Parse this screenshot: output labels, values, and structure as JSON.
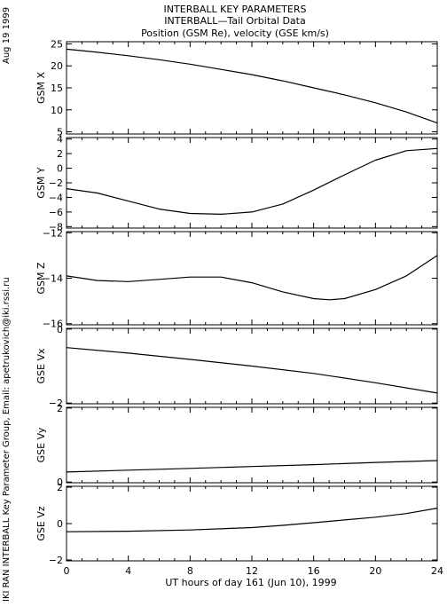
{
  "side_labels": {
    "date": "Aug 19 1999",
    "credit": "IKI RAN INTERBALL Key Parameter Group, Email: apetrukovich@iki.rssi.ru"
  },
  "header": {
    "line1": "INTERBALL KEY PARAMETERS",
    "line2": "INTERBALL—Tail Orbital Data",
    "line3": "Position (GSM Re), velocity (GSE km/s)"
  },
  "colors": {
    "line": "#000000",
    "background": "#ffffff"
  },
  "chart_data": [
    {
      "type": "line",
      "ylabel": "GSM X",
      "xlim": [
        0,
        24
      ],
      "ylim": [
        4.5,
        25.5
      ],
      "yticks": [
        5,
        10,
        15,
        20,
        25
      ],
      "x": [
        0,
        2,
        4,
        6,
        8,
        10,
        12,
        14,
        16,
        18,
        20,
        22,
        24
      ],
      "values": [
        23.8,
        23.1,
        22.3,
        21.4,
        20.4,
        19.2,
        18.0,
        16.6,
        15.0,
        13.4,
        11.6,
        9.5,
        7.0
      ]
    },
    {
      "type": "line",
      "ylabel": "GSM Y",
      "xlim": [
        0,
        24
      ],
      "ylim": [
        -8.2,
        4.2
      ],
      "yticks": [
        -8,
        -6,
        -4,
        -2,
        0,
        2,
        4
      ],
      "x": [
        0,
        2,
        4,
        6,
        8,
        10,
        12,
        14,
        16,
        18,
        20,
        22,
        24
      ],
      "values": [
        -2.8,
        -3.4,
        -4.5,
        -5.6,
        -6.2,
        -6.3,
        -6.0,
        -4.9,
        -3.0,
        -0.9,
        1.1,
        2.4,
        2.7
      ]
    },
    {
      "type": "line",
      "ylabel": "GSM Z",
      "xlim": [
        0,
        24
      ],
      "ylim": [
        -16.05,
        -11.95
      ],
      "yticks": [
        -16,
        -14,
        -12
      ],
      "x": [
        0,
        2,
        4,
        6,
        8,
        10,
        12,
        14,
        16,
        17,
        18,
        20,
        22,
        24
      ],
      "values": [
        -13.9,
        -14.1,
        -14.15,
        -14.05,
        -13.95,
        -13.95,
        -14.2,
        -14.6,
        -14.9,
        -14.95,
        -14.9,
        -14.5,
        -13.9,
        -13.0
      ]
    },
    {
      "type": "line",
      "ylabel": "GSE Vx",
      "xlim": [
        0,
        24
      ],
      "ylim": [
        -2.02,
        0.02
      ],
      "yticks": [
        -2,
        0
      ],
      "x": [
        0,
        4,
        8,
        12,
        16,
        20,
        24
      ],
      "values": [
        -0.5,
        -0.65,
        -0.82,
        -1.0,
        -1.2,
        -1.45,
        -1.73
      ]
    },
    {
      "type": "line",
      "ylabel": "GSE Vy",
      "xlim": [
        0,
        24
      ],
      "ylim": [
        -0.02,
        2.02
      ],
      "yticks": [
        0,
        2
      ],
      "x": [
        0,
        4,
        8,
        12,
        16,
        20,
        24
      ],
      "values": [
        0.27,
        0.32,
        0.37,
        0.42,
        0.47,
        0.53,
        0.58
      ]
    },
    {
      "type": "line",
      "ylabel": "GSE Vz",
      "xlim": [
        0,
        24
      ],
      "ylim": [
        -2.05,
        2.05
      ],
      "yticks": [
        -2,
        0,
        2
      ],
      "x": [
        0,
        4,
        8,
        12,
        14,
        16,
        18,
        20,
        22,
        24
      ],
      "values": [
        -0.45,
        -0.42,
        -0.35,
        -0.22,
        -0.1,
        0.05,
        0.2,
        0.35,
        0.55,
        0.85
      ]
    }
  ],
  "x_axis": {
    "ticks": [
      0,
      4,
      8,
      12,
      16,
      20,
      24
    ],
    "minor_step": 1,
    "label": "UT hours of day 161 (Jun 10), 1999"
  }
}
